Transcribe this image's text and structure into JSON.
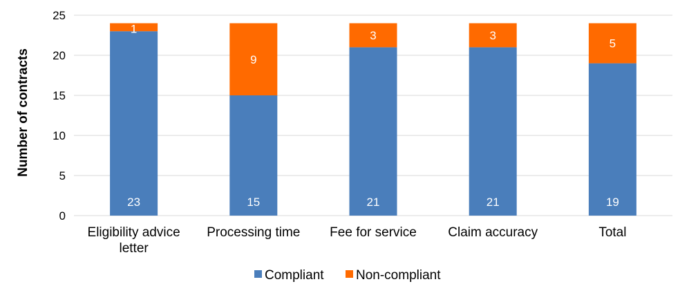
{
  "chart_data": {
    "type": "bar",
    "stacked": true,
    "categories": [
      [
        "Eligibility advice",
        "letter"
      ],
      [
        "Processing time"
      ],
      [
        "Fee for service"
      ],
      [
        "Claim accuracy"
      ],
      [
        "Total"
      ]
    ],
    "series": [
      {
        "name": "Compliant",
        "color": "#4a7ebb",
        "values": [
          23,
          15,
          21,
          21,
          19
        ]
      },
      {
        "name": "Non-compliant",
        "color": "#ff6a00",
        "values": [
          1,
          9,
          3,
          3,
          5
        ]
      }
    ],
    "ylabel": "Number of contracts",
    "xlabel": "",
    "ylim": [
      0,
      25
    ],
    "yticks": [
      0,
      5,
      10,
      15,
      20,
      25
    ],
    "grid": true,
    "legend": "bottom"
  }
}
